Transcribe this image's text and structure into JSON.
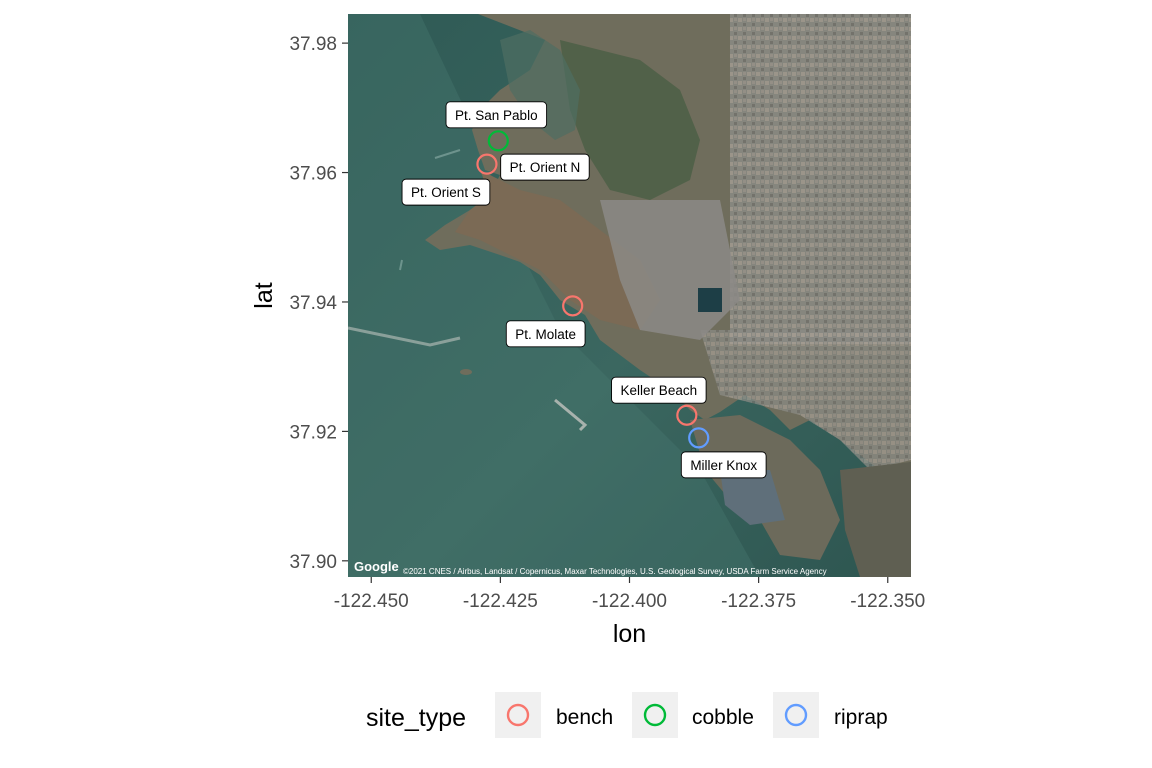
{
  "chart_data": {
    "type": "scatter",
    "xlabel": "lon",
    "ylabel": "lat",
    "xlim": [
      -122.4545,
      -122.3455
    ],
    "ylim": [
      37.8975,
      37.9845
    ],
    "x_ticks": [
      -122.45,
      -122.425,
      -122.4,
      -122.375,
      -122.35
    ],
    "x_tick_labels": [
      "-122.450",
      "-122.425",
      "-122.400",
      "-122.375",
      "-122.350"
    ],
    "y_ticks": [
      37.9,
      37.92,
      37.94,
      37.96,
      37.98
    ],
    "y_tick_labels": [
      "37.90",
      "37.92",
      "37.94",
      "37.96",
      "37.98"
    ],
    "basemap": "satellite",
    "map_credit": "©2021 CNES / Airbus, Landsat / Copernicus, Maxar Technologies, U.S. Geological Survey, USDA Farm Service Agency",
    "map_logo": "Google",
    "legend": {
      "title": "site_type",
      "position": "bottom",
      "entries": [
        {
          "label": "bench",
          "color": "#F8766D"
        },
        {
          "label": "cobble",
          "color": "#00BA38"
        },
        {
          "label": "riprap",
          "color": "#619CFF"
        }
      ]
    },
    "points": [
      {
        "site": "Pt. San Pablo",
        "site_type": "cobble",
        "lon": -122.4254,
        "lat": 37.9649
      },
      {
        "site": "Pt. Orient N",
        "site_type": "bench",
        "lon": -122.4276,
        "lat": 37.9613
      },
      {
        "site": "Pt. Orient S",
        "site_type": "bench",
        "lon": -122.4276,
        "lat": 37.9613
      },
      {
        "site": "Pt. Molate",
        "site_type": "bench",
        "lon": -122.411,
        "lat": 37.9394
      },
      {
        "site": "Keller Beach",
        "site_type": "bench",
        "lon": -122.3889,
        "lat": 37.9225
      },
      {
        "site": "Miller Knox",
        "site_type": "riprap",
        "lon": -122.3866,
        "lat": 37.919
      }
    ]
  }
}
